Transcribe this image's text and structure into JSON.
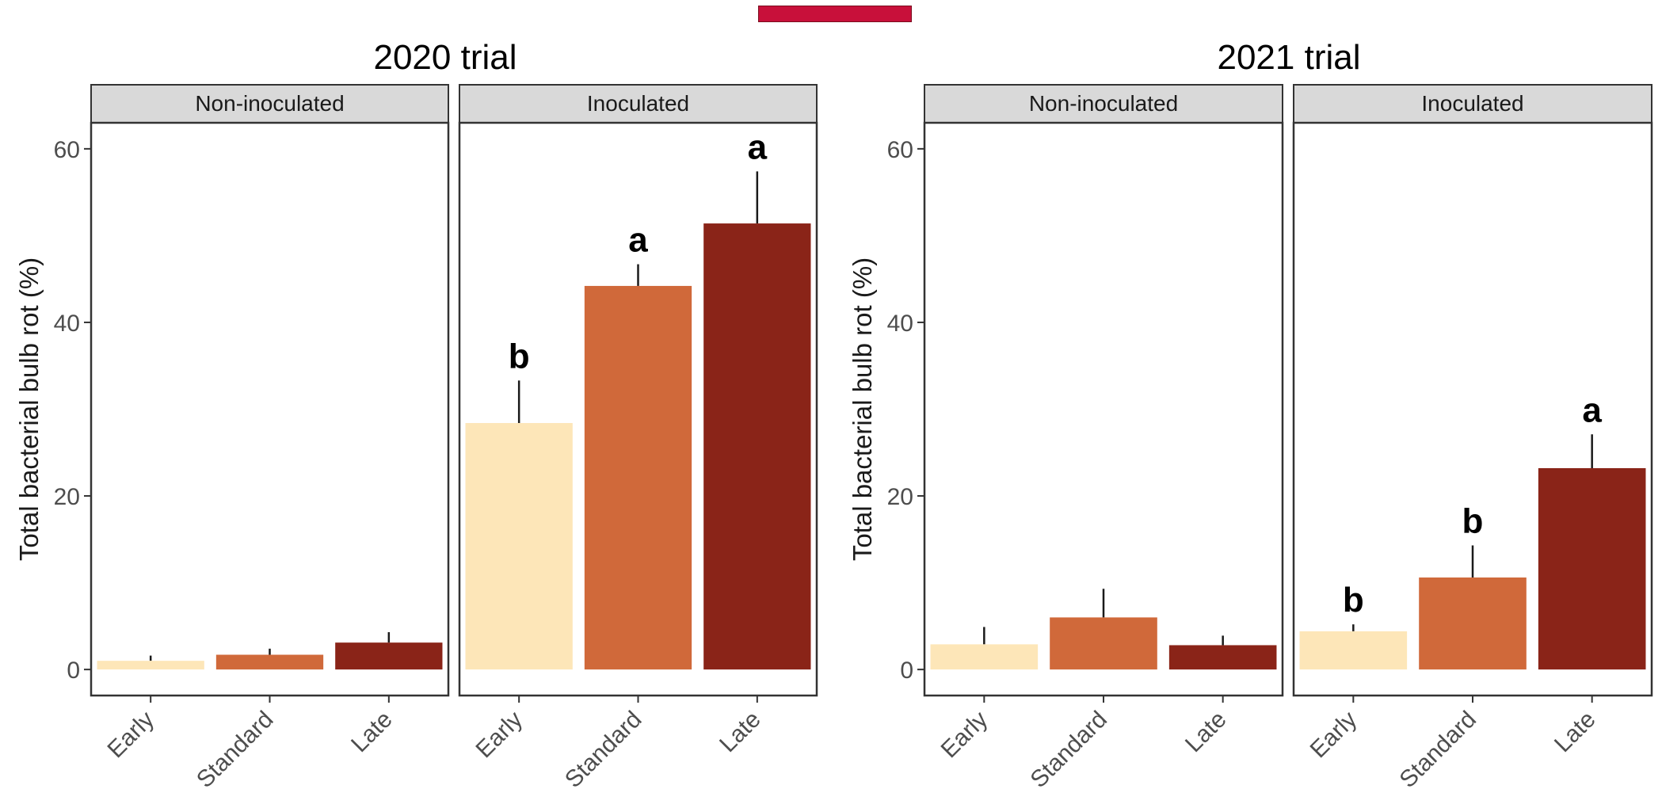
{
  "colors": {
    "early": "#fde6b8",
    "standard": "#d0693a",
    "late": "#8a2418",
    "legend_swatch": "#c8103a",
    "strip": "#d9d9d9"
  },
  "chart_data": [
    {
      "type": "bar",
      "title": "2020 trial",
      "ylabel": "Total bacterial bulb rot (%)",
      "ylim": [
        -3,
        63
      ],
      "yticks": [
        0,
        20,
        40,
        60
      ],
      "categories": [
        "Early",
        "Standard",
        "Late"
      ],
      "grid": false,
      "panels": [
        {
          "strip": "Non-inoculated",
          "values": [
            1.0,
            1.7,
            3.1
          ],
          "errors": [
            0.6,
            0.7,
            1.2
          ],
          "letters": [
            "",
            "",
            ""
          ]
        },
        {
          "strip": "Inoculated",
          "values": [
            28.4,
            44.2,
            51.4
          ],
          "errors": [
            4.9,
            2.5,
            6.0
          ],
          "letters": [
            "b",
            "a",
            "a"
          ]
        }
      ]
    },
    {
      "type": "bar",
      "title": "2021 trial",
      "ylabel": "Total bacterial bulb rot (%)",
      "ylim": [
        -3,
        63
      ],
      "yticks": [
        0,
        20,
        40,
        60
      ],
      "categories": [
        "Early",
        "Standard",
        "Late"
      ],
      "grid": false,
      "panels": [
        {
          "strip": "Non-inoculated",
          "values": [
            2.9,
            6.0,
            2.8
          ],
          "errors": [
            2.0,
            3.3,
            1.1
          ],
          "letters": [
            "",
            "",
            ""
          ]
        },
        {
          "strip": "Inoculated",
          "values": [
            4.4,
            10.6,
            23.2
          ],
          "errors": [
            0.8,
            3.7,
            3.9
          ],
          "letters": [
            "b",
            "b",
            "a"
          ]
        }
      ]
    }
  ]
}
